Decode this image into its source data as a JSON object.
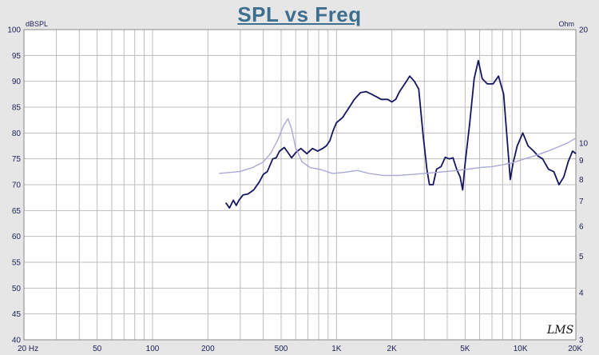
{
  "chart_data": {
    "type": "line",
    "title": "SPL vs Freq",
    "x_scale": "log",
    "xlim": [
      20,
      20000
    ],
    "ylim": [
      40,
      100
    ],
    "y2lim": [
      3,
      20
    ],
    "y2_scale": "log",
    "grid": true,
    "left_axis_unit": "dBSPL",
    "right_axis_unit": "Ohm",
    "x_tick_labels": [
      {
        "v": 20,
        "t": "20 Hz"
      },
      {
        "v": 50,
        "t": "50"
      },
      {
        "v": 100,
        "t": "100"
      },
      {
        "v": 200,
        "t": "200"
      },
      {
        "v": 500,
        "t": "500"
      },
      {
        "v": 1000,
        "t": "1K"
      },
      {
        "v": 2000,
        "t": "2K"
      },
      {
        "v": 5000,
        "t": "5K"
      },
      {
        "v": 10000,
        "t": "10K"
      },
      {
        "v": 20000,
        "t": "20K"
      }
    ],
    "y_ticks": [
      "100",
      "95",
      "90",
      "85",
      "80",
      "75",
      "70",
      "65",
      "60",
      "55",
      "50",
      "45",
      "40"
    ],
    "y2_ticks": [
      "20",
      "10",
      "9",
      "8",
      "7",
      "6",
      "5",
      "4",
      "3"
    ],
    "series": [
      {
        "axis": "left",
        "color": "#15155f",
        "points": [
          [
            250,
            66.5
          ],
          [
            262,
            65.5
          ],
          [
            275,
            67
          ],
          [
            285,
            66
          ],
          [
            295,
            67
          ],
          [
            310,
            68
          ],
          [
            330,
            68.2
          ],
          [
            355,
            69
          ],
          [
            380,
            70.5
          ],
          [
            400,
            72
          ],
          [
            420,
            72.5
          ],
          [
            450,
            75
          ],
          [
            470,
            75.2
          ],
          [
            490,
            76.5
          ],
          [
            520,
            77.2
          ],
          [
            545,
            76.2
          ],
          [
            570,
            75.2
          ],
          [
            600,
            76.2
          ],
          [
            640,
            77
          ],
          [
            690,
            76
          ],
          [
            740,
            77
          ],
          [
            790,
            76.5
          ],
          [
            840,
            77
          ],
          [
            880,
            77.5
          ],
          [
            920,
            78.5
          ],
          [
            960,
            80.5
          ],
          [
            1000,
            82
          ],
          [
            1080,
            83
          ],
          [
            1150,
            84.5
          ],
          [
            1250,
            86.5
          ],
          [
            1350,
            87.8
          ],
          [
            1450,
            88
          ],
          [
            1550,
            87.5
          ],
          [
            1650,
            87
          ],
          [
            1750,
            86.5
          ],
          [
            1900,
            86.5
          ],
          [
            2000,
            86
          ],
          [
            2100,
            86.5
          ],
          [
            2200,
            88
          ],
          [
            2350,
            89.5
          ],
          [
            2500,
            91
          ],
          [
            2650,
            90
          ],
          [
            2800,
            88.5
          ],
          [
            2950,
            80
          ],
          [
            3100,
            73
          ],
          [
            3200,
            70
          ],
          [
            3350,
            70
          ],
          [
            3500,
            73
          ],
          [
            3700,
            73.5
          ],
          [
            3900,
            75.3
          ],
          [
            4100,
            75
          ],
          [
            4300,
            75.2
          ],
          [
            4500,
            73
          ],
          [
            4700,
            71.5
          ],
          [
            4850,
            69
          ],
          [
            5000,
            74
          ],
          [
            5300,
            82
          ],
          [
            5600,
            90.5
          ],
          [
            5900,
            94
          ],
          [
            6200,
            90.5
          ],
          [
            6600,
            89.5
          ],
          [
            7100,
            89.5
          ],
          [
            7600,
            91
          ],
          [
            8100,
            87.5
          ],
          [
            8500,
            78
          ],
          [
            8800,
            71
          ],
          [
            9100,
            74
          ],
          [
            9600,
            77.5
          ],
          [
            10300,
            80
          ],
          [
            11000,
            77.5
          ],
          [
            11800,
            76.5
          ],
          [
            12500,
            75.5
          ],
          [
            13200,
            75
          ],
          [
            14200,
            73
          ],
          [
            15200,
            72.5
          ],
          [
            16200,
            70
          ],
          [
            17200,
            71.5
          ],
          [
            18200,
            74.5
          ],
          [
            19200,
            76.5
          ],
          [
            20000,
            76
          ]
        ]
      },
      {
        "axis": "right",
        "color": "#a8aad4",
        "points": [
          [
            230,
            8.3
          ],
          [
            300,
            8.4
          ],
          [
            350,
            8.6
          ],
          [
            400,
            8.9
          ],
          [
            440,
            9.4
          ],
          [
            480,
            10.2
          ],
          [
            515,
            11.1
          ],
          [
            545,
            11.6
          ],
          [
            570,
            10.9
          ],
          [
            600,
            9.7
          ],
          [
            650,
            8.9
          ],
          [
            720,
            8.6
          ],
          [
            820,
            8.5
          ],
          [
            950,
            8.3
          ],
          [
            1100,
            8.35
          ],
          [
            1300,
            8.45
          ],
          [
            1500,
            8.3
          ],
          [
            1800,
            8.2
          ],
          [
            2200,
            8.2
          ],
          [
            2600,
            8.25
          ],
          [
            3000,
            8.3
          ],
          [
            3500,
            8.35
          ],
          [
            4000,
            8.4
          ],
          [
            5000,
            8.5
          ],
          [
            6000,
            8.6
          ],
          [
            7000,
            8.65
          ],
          [
            8000,
            8.75
          ],
          [
            9000,
            8.85
          ],
          [
            10000,
            9
          ],
          [
            12000,
            9.25
          ],
          [
            14000,
            9.5
          ],
          [
            16000,
            9.75
          ],
          [
            18000,
            10
          ],
          [
            20000,
            10.3
          ]
        ]
      }
    ],
    "logo_text": "LMS"
  }
}
